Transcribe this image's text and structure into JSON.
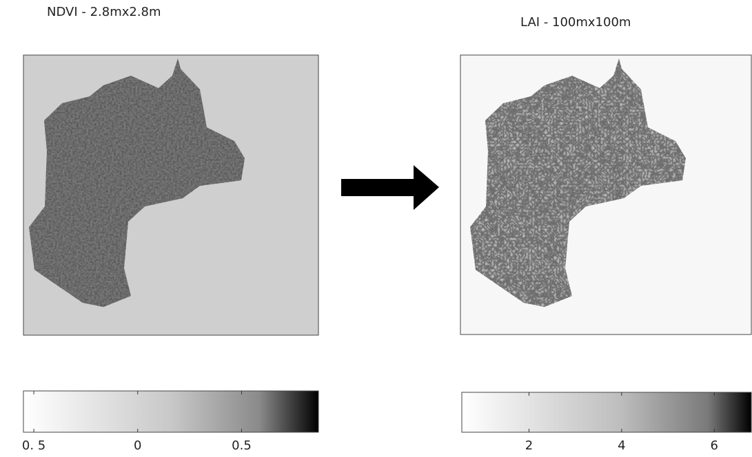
{
  "panels": [
    {
      "title": "NDVI - 2.8mx2.8m",
      "colorbar": {
        "clim": [
          -0.55,
          0.87
        ],
        "ticks": [
          {
            "value": -0.5,
            "label": "0. 5"
          },
          0,
          0.5
        ]
      }
    },
    {
      "title": "LAI - 100mx100m",
      "colorbar": {
        "clim": [
          0.55,
          6.8
        ],
        "ticks": [
          2,
          4,
          6
        ]
      }
    }
  ]
}
